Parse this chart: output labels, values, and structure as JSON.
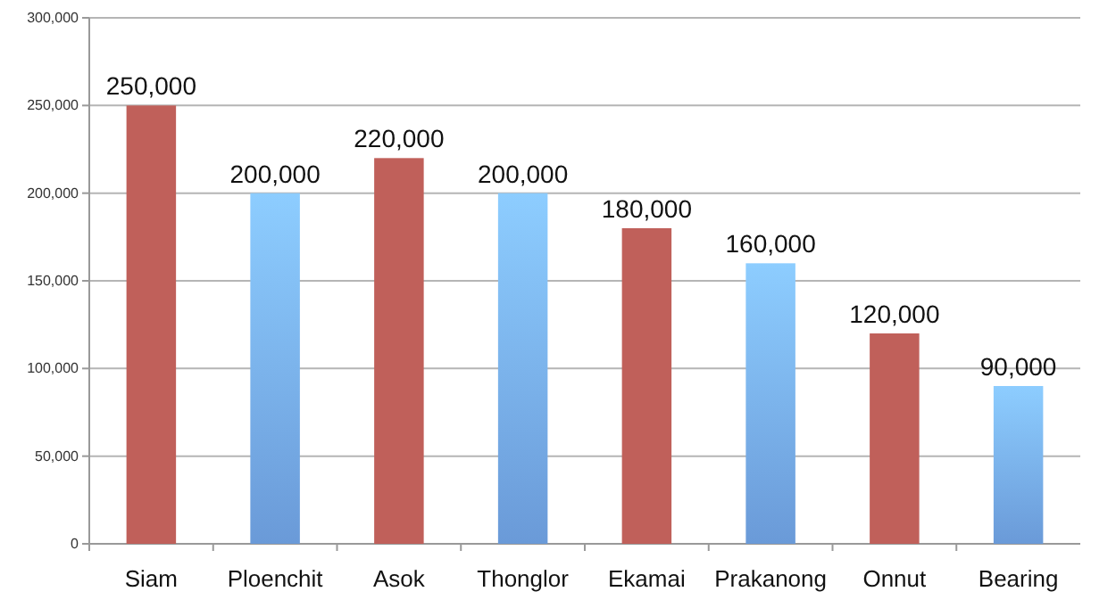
{
  "chart_data": {
    "type": "bar",
    "categories": [
      "Siam",
      "Ploenchit",
      "Asok",
      "Thonglor",
      "Ekamai",
      "Prakanong",
      "Onnut",
      "Bearing"
    ],
    "values": [
      250000,
      200000,
      220000,
      200000,
      180000,
      160000,
      120000,
      90000
    ],
    "colors": [
      "#c0605a",
      "#6a9ad8",
      "#c0605a",
      "#6a9ad8",
      "#c0605a",
      "#6a9ad8",
      "#c0605a",
      "#6a9ad8"
    ],
    "ylim": [
      0,
      300000
    ],
    "yticks": [
      {
        "value": 0,
        "label": "0"
      },
      {
        "value": 50000,
        "label": "50,000"
      },
      {
        "value": 100000,
        "label": "100,000"
      },
      {
        "value": 150000,
        "label": "150,000"
      },
      {
        "value": 200000,
        "label": "200,000"
      },
      {
        "value": 250000,
        "label": "250,000"
      },
      {
        "value": 300000,
        "label": "300,000"
      }
    ],
    "grid": "y",
    "value_labels": [
      "250,000",
      "200,000",
      "220,000",
      "200,000",
      "180,000",
      "160,000",
      "120,000",
      "90,000"
    ]
  }
}
